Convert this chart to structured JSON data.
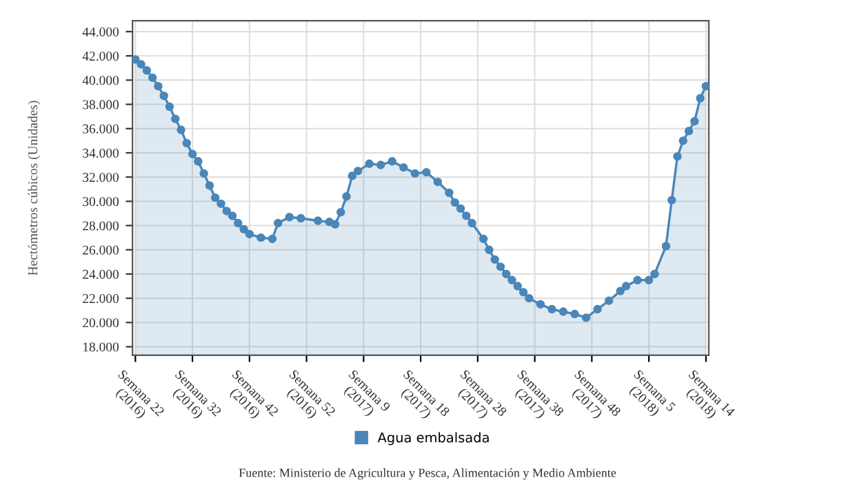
{
  "chart_data": {
    "type": "area",
    "ylabel": "Hectómetros cúbicos (Unidades)",
    "categories": [
      "Semana 22\n(2016)",
      null,
      null,
      null,
      null,
      null,
      null,
      null,
      null,
      null,
      "Semana 32\n(2016)",
      null,
      null,
      null,
      null,
      null,
      null,
      null,
      null,
      null,
      "Semana 42\n(2016)",
      null,
      null,
      null,
      null,
      null,
      null,
      null,
      null,
      null,
      "Semana 52\n(2016)",
      null,
      null,
      null,
      null,
      null,
      null,
      null,
      null,
      null,
      "Semana 9\n(2017)",
      null,
      null,
      null,
      null,
      null,
      null,
      null,
      null,
      null,
      "Semana 18\n(2017)",
      null,
      null,
      null,
      null,
      null,
      null,
      null,
      null,
      null,
      "Semana 28\n(2017)",
      null,
      null,
      null,
      null,
      null,
      null,
      null,
      null,
      null,
      "Semana 38\n(2017)",
      null,
      null,
      null,
      null,
      null,
      null,
      null,
      null,
      null,
      "Semana 48\n(2017)",
      null,
      null,
      null,
      null,
      null,
      null,
      null,
      null,
      null,
      "Semana 5\n(2018)",
      null,
      null,
      null,
      null,
      null,
      null,
      null,
      null,
      null,
      "Semana 14\n(2018)"
    ],
    "series": [
      {
        "name": "Agua embalsada",
        "color": "#4a86b8",
        "values": [
          41700,
          41300,
          40800,
          40200,
          39500,
          38700,
          37800,
          36800,
          35900,
          34800,
          33900,
          33300,
          32300,
          31300,
          30300,
          29800,
          29200,
          28800,
          28200,
          27700,
          27300,
          null,
          27000,
          null,
          26900,
          28200,
          null,
          28700,
          null,
          28600,
          null,
          null,
          28400,
          null,
          28300,
          28100,
          29100,
          30400,
          32100,
          32500,
          null,
          33100,
          null,
          33000,
          null,
          33300,
          null,
          32800,
          null,
          32300,
          null,
          32400,
          null,
          31600,
          null,
          30700,
          29900,
          29400,
          28800,
          28200,
          null,
          26900,
          26000,
          25200,
          24600,
          24000,
          23500,
          23000,
          22500,
          22000,
          null,
          21500,
          null,
          21100,
          null,
          20900,
          null,
          20700,
          null,
          20400,
          null,
          21100,
          null,
          21800,
          null,
          22600,
          23000,
          null,
          23500,
          null,
          23500,
          24000,
          null,
          26300,
          30100,
          33700,
          35000,
          35800,
          36600,
          38500,
          39500
        ]
      }
    ],
    "ylim": [
      17300,
      44900
    ],
    "yticks": [
      {
        "value": 18000,
        "label": "18.000"
      },
      {
        "value": 20000,
        "label": "20.000"
      },
      {
        "value": 22000,
        "label": "22.000"
      },
      {
        "value": 24000,
        "label": "24.000"
      },
      {
        "value": 26000,
        "label": "26.000"
      },
      {
        "value": 28000,
        "label": "28.000"
      },
      {
        "value": 30000,
        "label": "30.000"
      },
      {
        "value": 32000,
        "label": "32.000"
      },
      {
        "value": 34000,
        "label": "34.000"
      },
      {
        "value": 36000,
        "label": "36.000"
      },
      {
        "value": 38000,
        "label": "38.000"
      },
      {
        "value": 40000,
        "label": "40.000"
      },
      {
        "value": 42000,
        "label": "42.000"
      },
      {
        "value": 44000,
        "label": "44.000"
      }
    ],
    "grid": true,
    "legend": "bottom",
    "marker": "circle",
    "annotations": [
      "Fuente: Ministerio de Agricultura y Pesca, Alimentación y Medio Ambiente"
    ]
  }
}
